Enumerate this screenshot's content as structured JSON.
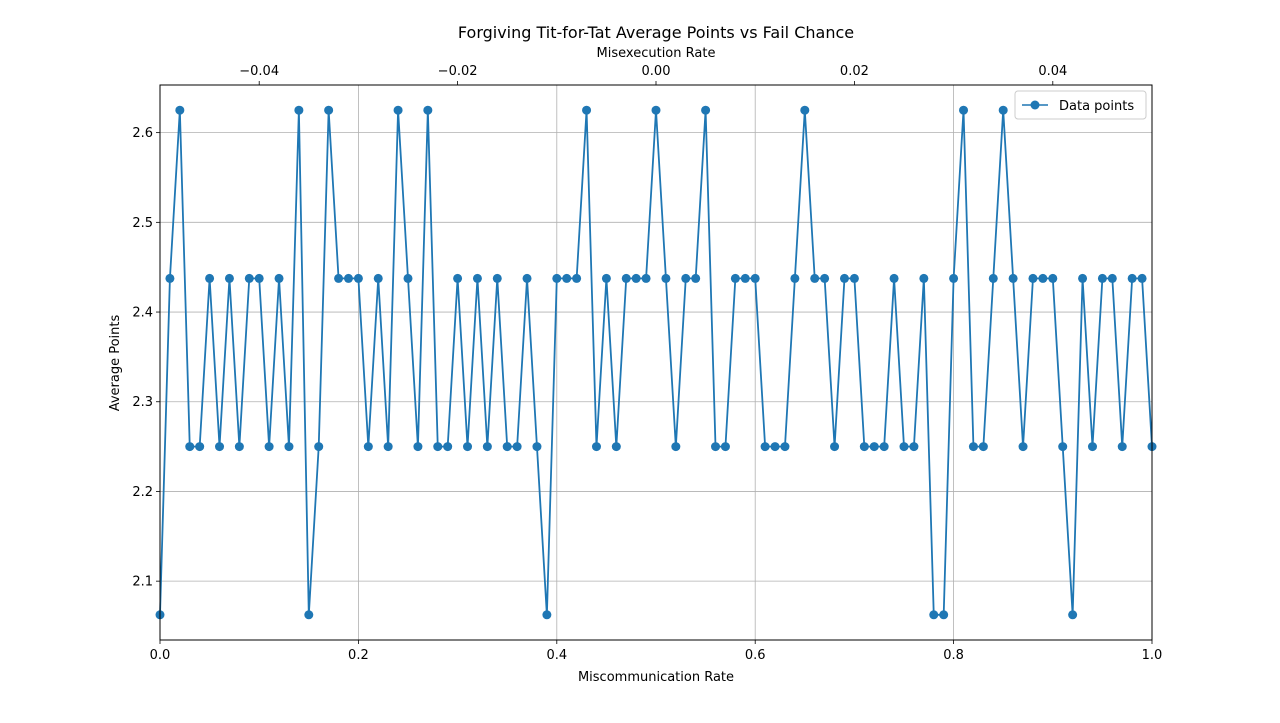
{
  "chart_data": {
    "type": "line",
    "title": "Forgiving Tit-for-Tat Average Points vs Fail Chance",
    "xlabel": "Miscommunication Rate",
    "ylabel": "Average Points",
    "top_xlabel": "Misexecution Rate",
    "xlim": [
      0,
      1
    ],
    "ylim": [
      2.0344,
      2.6531
    ],
    "top_xlim": [
      -0.05,
      0.05
    ],
    "x_ticks": [
      0.0,
      0.2,
      0.4,
      0.6,
      0.8,
      1.0
    ],
    "x_tick_labels": [
      "0.0",
      "0.2",
      "0.4",
      "0.6",
      "0.8",
      "1.0"
    ],
    "y_ticks": [
      2.1,
      2.2,
      2.3,
      2.4,
      2.5,
      2.6
    ],
    "y_tick_labels": [
      "2.1",
      "2.2",
      "2.3",
      "2.4",
      "2.5",
      "2.6"
    ],
    "top_x_ticks": [
      -0.04,
      -0.02,
      0.0,
      0.02,
      0.04
    ],
    "top_x_tick_labels": [
      "−0.04",
      "−0.02",
      "0.00",
      "0.02",
      "0.04"
    ],
    "grid": true,
    "legend": {
      "position": "top-right",
      "entries": [
        "Data points"
      ]
    },
    "series_color": "#1f77b4",
    "series": [
      {
        "name": "Data points",
        "x": [
          0.0,
          0.01,
          0.02,
          0.03,
          0.04,
          0.05,
          0.06,
          0.07,
          0.08,
          0.09,
          0.1,
          0.11,
          0.12,
          0.13,
          0.14,
          0.15,
          0.16,
          0.17,
          0.18,
          0.19,
          0.2,
          0.21,
          0.22,
          0.23,
          0.24,
          0.25,
          0.26,
          0.27,
          0.28,
          0.29,
          0.3,
          0.31,
          0.32,
          0.33,
          0.34,
          0.35,
          0.36,
          0.37,
          0.38,
          0.39,
          0.4,
          0.41,
          0.42,
          0.43,
          0.44,
          0.45,
          0.46,
          0.47,
          0.48,
          0.49,
          0.5,
          0.51,
          0.52,
          0.53,
          0.54,
          0.55,
          0.56,
          0.57,
          0.58,
          0.59,
          0.6,
          0.61,
          0.62,
          0.63,
          0.64,
          0.65,
          0.66,
          0.67,
          0.68,
          0.69,
          0.7,
          0.71,
          0.72,
          0.73,
          0.74,
          0.75,
          0.76,
          0.77,
          0.78,
          0.79,
          0.8,
          0.81,
          0.82,
          0.83,
          0.84,
          0.85,
          0.86,
          0.87,
          0.88,
          0.89,
          0.9,
          0.91,
          0.92,
          0.93,
          0.94,
          0.95,
          0.96,
          0.97,
          0.98,
          0.99,
          1.0
        ],
        "y": [
          2.0625,
          2.4375,
          2.625,
          2.25,
          2.25,
          2.4375,
          2.25,
          2.4375,
          2.25,
          2.4375,
          2.4375,
          2.25,
          2.4375,
          2.25,
          2.625,
          2.0625,
          2.25,
          2.625,
          2.4375,
          2.4375,
          2.4375,
          2.25,
          2.4375,
          2.25,
          2.625,
          2.4375,
          2.25,
          2.625,
          2.25,
          2.25,
          2.4375,
          2.25,
          2.4375,
          2.25,
          2.4375,
          2.25,
          2.25,
          2.4375,
          2.25,
          2.0625,
          2.4375,
          2.4375,
          2.4375,
          2.625,
          2.25,
          2.4375,
          2.25,
          2.4375,
          2.4375,
          2.4375,
          2.625,
          2.4375,
          2.25,
          2.4375,
          2.4375,
          2.625,
          2.25,
          2.25,
          2.4375,
          2.4375,
          2.4375,
          2.25,
          2.25,
          2.25,
          2.4375,
          2.625,
          2.4375,
          2.4375,
          2.25,
          2.4375,
          2.4375,
          2.25,
          2.25,
          2.25,
          2.4375,
          2.25,
          2.25,
          2.4375,
          2.0625,
          2.0625,
          2.4375,
          2.625,
          2.25,
          2.25,
          2.4375,
          2.625,
          2.4375,
          2.25,
          2.4375,
          2.4375,
          2.4375,
          2.25,
          2.0625,
          2.4375,
          2.25,
          2.4375,
          2.4375,
          2.25,
          2.4375,
          2.4375,
          2.25
        ]
      }
    ]
  }
}
